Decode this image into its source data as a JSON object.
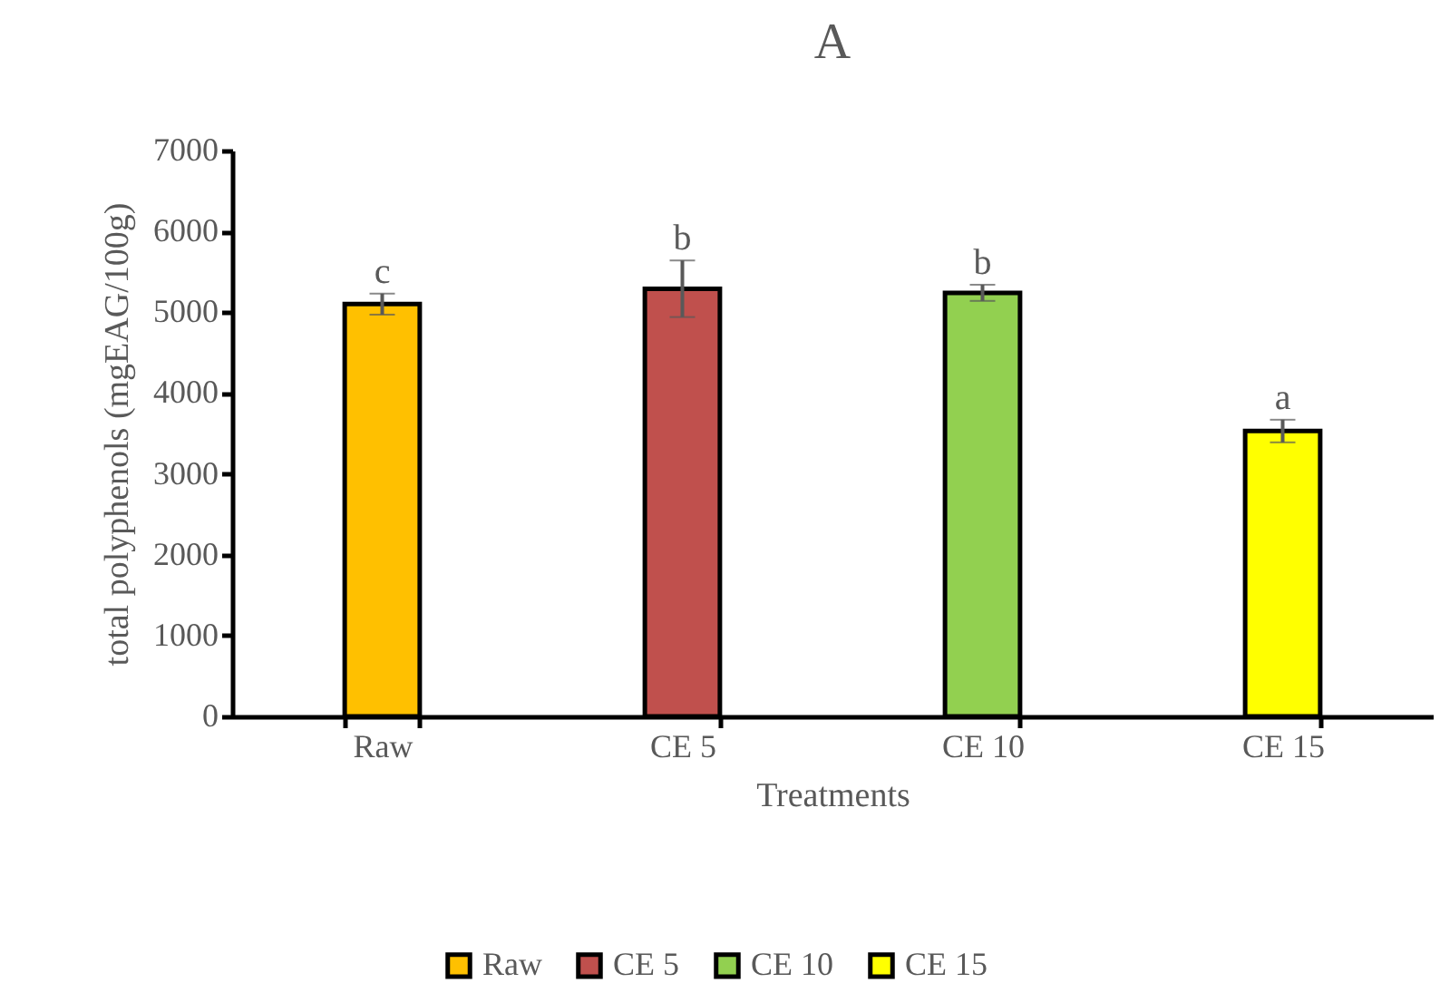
{
  "chart_data": {
    "type": "bar",
    "title": "A",
    "xlabel": "Treatments",
    "ylabel": "total polyphenols (mgEAG/100g)",
    "categories": [
      "Raw",
      "CE 5",
      "CE 10",
      "CE 15"
    ],
    "series": [
      {
        "name": "Raw",
        "color": "#ffc000",
        "values": [
          5100,
          null,
          null,
          null
        ],
        "errors": [
          130,
          null,
          null,
          null
        ]
      },
      {
        "name": "CE 5",
        "color": "#c0504d",
        "values": [
          null,
          5290,
          null,
          null
        ],
        "errors": [
          null,
          350,
          null,
          null
        ]
      },
      {
        "name": "CE 10",
        "color": "#92d050",
        "values": [
          null,
          null,
          5240,
          null
        ],
        "errors": [
          null,
          null,
          100,
          null
        ]
      },
      {
        "name": "CE 15",
        "color": "#ffff00",
        "values": [
          null,
          null,
          null,
          3530
        ],
        "errors": [
          null,
          null,
          null,
          140
        ]
      }
    ],
    "ylim": [
      0,
      7000
    ],
    "yticks": [
      0,
      1000,
      2000,
      3000,
      4000,
      5000,
      6000,
      7000
    ],
    "legend": "bottom",
    "annotations": [
      "c",
      "b",
      "b",
      "a"
    ]
  }
}
